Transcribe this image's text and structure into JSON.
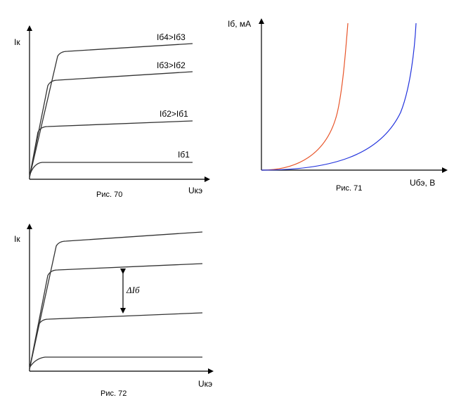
{
  "figures": {
    "fig70": {
      "caption": "Рис. 70",
      "y_axis_label": "Iк",
      "x_axis_label": "Uкэ",
      "curve_labels": [
        "Iб4>Iб3",
        "Iб3>Iб2",
        "Iб2>Iб1",
        "Iб1"
      ]
    },
    "fig71": {
      "caption": "Рис. 71",
      "y_axis_label": "Iб, мА",
      "x_axis_label": "Uбэ, В",
      "curve_colors": [
        "#e8552a",
        "#2233dd"
      ]
    },
    "fig72": {
      "caption": "Рис. 72",
      "y_axis_label": "Iк",
      "x_axis_label": "Uкэ",
      "annotation": "ΔIб"
    }
  }
}
